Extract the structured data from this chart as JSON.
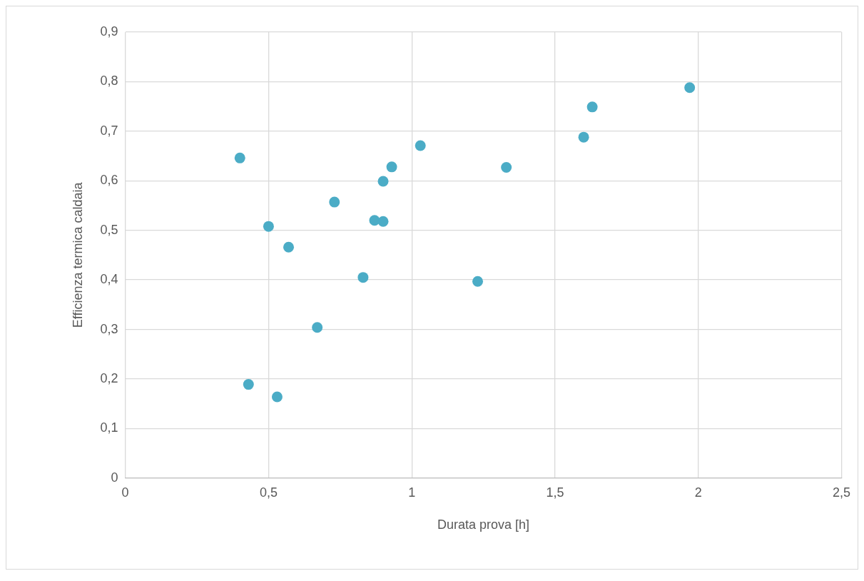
{
  "chart_data": {
    "type": "scatter",
    "xlabel": "Durata prova [h]",
    "ylabel": "Efficienza termica caldaia",
    "x": [
      0.4,
      0.43,
      0.5,
      0.53,
      0.57,
      0.67,
      0.73,
      0.83,
      0.87,
      0.9,
      0.9,
      0.93,
      1.03,
      1.23,
      1.33,
      1.6,
      1.63,
      1.97
    ],
    "series": [
      {
        "color": "#4bacc6",
        "values": [
          0.646,
          0.189,
          0.508,
          0.164,
          0.466,
          0.304,
          0.557,
          0.405,
          0.52,
          0.599,
          0.518,
          0.628,
          0.671,
          0.397,
          0.627,
          0.688,
          0.749,
          0.788
        ]
      }
    ],
    "xlim": [
      0,
      2.5
    ],
    "ylim": [
      0,
      0.9
    ],
    "xticks": [
      0,
      {
        "value": 0.5,
        "label": "0,5"
      },
      1,
      {
        "value": 1.5,
        "label": "1,5"
      },
      2,
      {
        "value": 2.5,
        "label": "2,5"
      }
    ],
    "yticks": [
      0,
      {
        "value": 0.1,
        "label": "0,1"
      },
      {
        "value": 0.2,
        "label": "0,2"
      },
      {
        "value": 0.3,
        "label": "0,3"
      },
      {
        "value": 0.4,
        "label": "0,4"
      },
      {
        "value": 0.5,
        "label": "0,5"
      },
      {
        "value": 0.6,
        "label": "0,6"
      },
      {
        "value": 0.7,
        "label": "0,7"
      },
      {
        "value": 0.8,
        "label": "0,8"
      },
      {
        "value": 0.9,
        "label": "0,9"
      }
    ],
    "grid": true,
    "legend": false,
    "marker": "circle"
  }
}
